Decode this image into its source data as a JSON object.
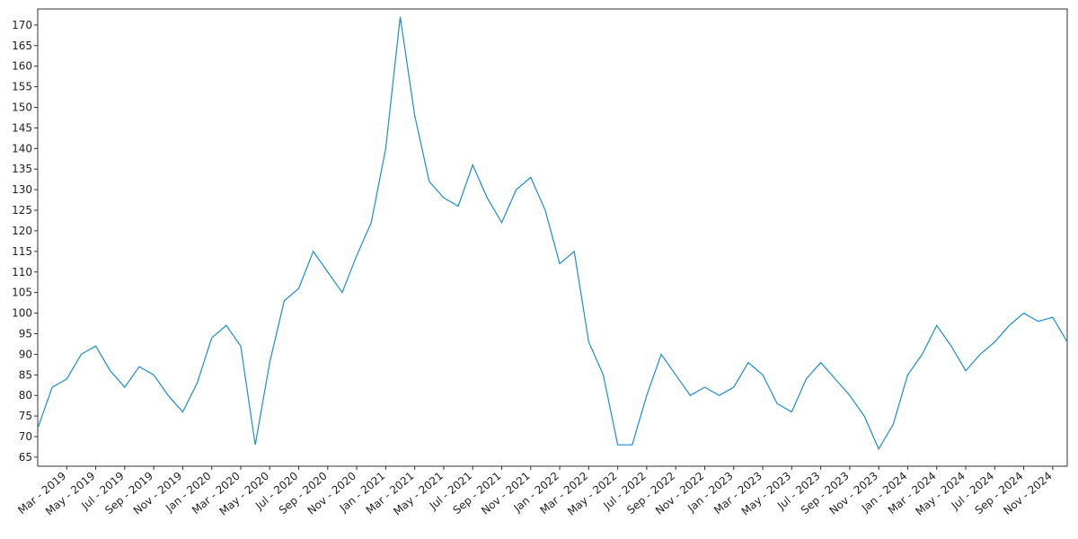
{
  "chart_data": {
    "type": "line",
    "x": [
      "2019-01",
      "2019-02",
      "2019-03",
      "2019-04",
      "2019-05",
      "2019-06",
      "2019-07",
      "2019-08",
      "2019-09",
      "2019-10",
      "2019-11",
      "2019-12",
      "2020-01",
      "2020-02",
      "2020-03",
      "2020-04",
      "2020-05",
      "2020-06",
      "2020-07",
      "2020-08",
      "2020-09",
      "2020-10",
      "2020-11",
      "2020-12",
      "2021-01",
      "2021-02",
      "2021-03",
      "2021-04",
      "2021-05",
      "2021-06",
      "2021-07",
      "2021-08",
      "2021-09",
      "2021-10",
      "2021-11",
      "2021-12",
      "2022-01",
      "2022-02",
      "2022-03",
      "2022-04",
      "2022-05",
      "2022-06",
      "2022-07",
      "2022-08",
      "2022-09",
      "2022-10",
      "2022-11",
      "2022-12",
      "2023-01",
      "2023-02",
      "2023-03",
      "2023-04",
      "2023-05",
      "2023-06",
      "2023-07",
      "2023-08",
      "2023-09",
      "2023-10",
      "2023-11",
      "2023-12",
      "2024-01",
      "2024-02",
      "2024-03",
      "2024-04",
      "2024-05",
      "2024-06",
      "2024-07",
      "2024-08",
      "2024-09",
      "2024-10",
      "2024-11",
      "2024-12"
    ],
    "series": [
      {
        "color": "#1a8ed0",
        "values": [
          72,
          82,
          84,
          90,
          92,
          86,
          82,
          87,
          85,
          80,
          76,
          83,
          94,
          97,
          92,
          68,
          88,
          103,
          106,
          115,
          110,
          105,
          114,
          122,
          140,
          172,
          148,
          132,
          128,
          126,
          136,
          128,
          122,
          130,
          133,
          125,
          112,
          115,
          93,
          85,
          68,
          68,
          80,
          90,
          85,
          80,
          82,
          80,
          82,
          88,
          85,
          78,
          76,
          84,
          88,
          84,
          80,
          75,
          67,
          73,
          85,
          90,
          97,
          92,
          86,
          90,
          93,
          97,
          100,
          98,
          99,
          93
        ]
      }
    ],
    "xlim": [
      "2019-01",
      "2024-12"
    ],
    "xticks": [
      {
        "value": "2019-03",
        "label": "Mar - 2019"
      },
      {
        "value": "2019-05",
        "label": "May - 2019"
      },
      {
        "value": "2019-07",
        "label": "Jul - 2019"
      },
      {
        "value": "2019-09",
        "label": "Sep - 2019"
      },
      {
        "value": "2019-11",
        "label": "Nov - 2019"
      },
      {
        "value": "2020-01",
        "label": "Jan - 2020"
      },
      {
        "value": "2020-03",
        "label": "Mar - 2020"
      },
      {
        "value": "2020-05",
        "label": "May - 2020"
      },
      {
        "value": "2020-07",
        "label": "Jul - 2020"
      },
      {
        "value": "2020-09",
        "label": "Sep - 2020"
      },
      {
        "value": "2020-11",
        "label": "Nov - 2020"
      },
      {
        "value": "2021-01",
        "label": "Jan - 2021"
      },
      {
        "value": "2021-03",
        "label": "Mar - 2021"
      },
      {
        "value": "2021-05",
        "label": "May - 2021"
      },
      {
        "value": "2021-07",
        "label": "Jul - 2021"
      },
      {
        "value": "2021-09",
        "label": "Sep - 2021"
      },
      {
        "value": "2021-11",
        "label": "Nov - 2021"
      },
      {
        "value": "2022-01",
        "label": "Jan - 2022"
      },
      {
        "value": "2022-03",
        "label": "Mar - 2022"
      },
      {
        "value": "2022-05",
        "label": "May - 2022"
      },
      {
        "value": "2022-07",
        "label": "Jul - 2022"
      },
      {
        "value": "2022-09",
        "label": "Sep - 2022"
      },
      {
        "value": "2022-11",
        "label": "Nov - 2022"
      },
      {
        "value": "2023-01",
        "label": "Jan - 2023"
      },
      {
        "value": "2023-03",
        "label": "Mar - 2023"
      },
      {
        "value": "2023-05",
        "label": "May - 2023"
      },
      {
        "value": "2023-07",
        "label": "Jul - 2023"
      },
      {
        "value": "2023-09",
        "label": "Sep - 2023"
      },
      {
        "value": "2023-11",
        "label": "Nov - 2023"
      },
      {
        "value": "2024-01",
        "label": "Jan - 2024"
      },
      {
        "value": "2024-03",
        "label": "Mar - 2024"
      },
      {
        "value": "2024-05",
        "label": "May - 2024"
      },
      {
        "value": "2024-07",
        "label": "Jul - 2024"
      },
      {
        "value": "2024-09",
        "label": "Sep - 2024"
      },
      {
        "value": "2024-11",
        "label": "Nov - 2024"
      }
    ],
    "ylim": [
      62.8,
      173.9
    ],
    "yticks": [
      65,
      70,
      75,
      80,
      85,
      90,
      95,
      100,
      105,
      110,
      115,
      120,
      125,
      130,
      135,
      140,
      145,
      150,
      155,
      160,
      165,
      170
    ]
  }
}
